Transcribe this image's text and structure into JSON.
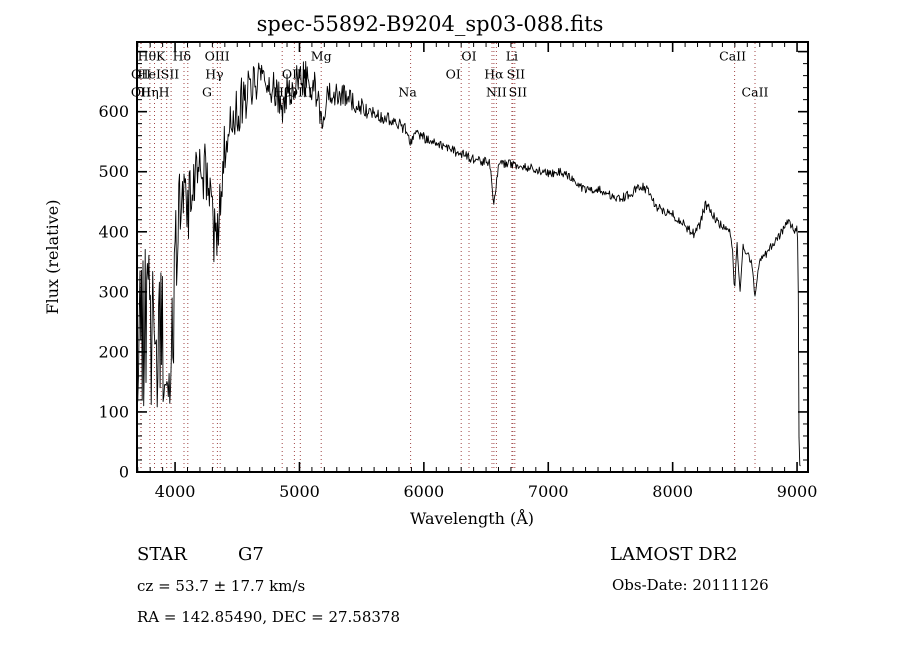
{
  "title": "spec-55892-B9204_sp03-088.fits",
  "axes": {
    "x_label": "Wavelength (Å)",
    "y_label": "Flux (relative)",
    "x_major_ticks": [
      4000,
      5000,
      6000,
      7000,
      8000,
      9000
    ],
    "y_major_ticks": [
      0,
      100,
      200,
      300,
      400,
      500,
      600,
      700
    ],
    "y_labeled_ticks": [
      0,
      100,
      200,
      300,
      400,
      500,
      600
    ],
    "x_minor_step": 100,
    "y_minor_step": 20,
    "x_range": [
      3694,
      9088
    ],
    "y_range": [
      0,
      716
    ]
  },
  "annotations": {
    "object_class": "STAR",
    "subclass": "G7",
    "cz": "cz = 53.7 ± 17.7 km/s",
    "radec": "RA = 142.85490, DEC =  27.58378",
    "survey": "LAMOST DR2",
    "obs_date": "Obs-Date: 20111126"
  },
  "colors": {
    "trace": "#000000",
    "marker_line": "#a04545",
    "text": "#000000",
    "background": "#ffffff"
  },
  "spectral_lines": [
    {
      "label": "OII",
      "wavelength": 3727,
      "row": 2,
      "dx": 0
    },
    {
      "label": "OII",
      "wavelength": 3725,
      "row": 3,
      "dx": 0
    },
    {
      "label": "Hθ",
      "wavelength": 3798,
      "row": 1,
      "dx": -3
    },
    {
      "label": "Hη",
      "wavelength": 3835,
      "row": 3,
      "dx": -5
    },
    {
      "label": "HeI",
      "wavelength": 3889,
      "row": 2,
      "dx": -12
    },
    {
      "label": "K",
      "wavelength": 3933,
      "row": 1,
      "dx": -6
    },
    {
      "label": "H",
      "wavelength": 3968,
      "row": 3,
      "dx": -7
    },
    {
      "label": "SII",
      "wavelength": 4072,
      "row": 2,
      "dx": -14
    },
    {
      "label": "Hδ",
      "wavelength": 4102,
      "row": 1,
      "dx": -6
    },
    {
      "label": "G",
      "wavelength": 4305,
      "row": 3,
      "dx": -6
    },
    {
      "label": "Hγ",
      "wavelength": 4340,
      "row": 2,
      "dx": -3
    },
    {
      "label": "OIII",
      "wavelength": 4363,
      "row": 1,
      "dx": -3
    },
    {
      "label": "Hβ",
      "wavelength": 4861,
      "row": 3,
      "dx": 0
    },
    {
      "label": "OIII",
      "wavelength": 4959,
      "row": 2,
      "dx": 0
    },
    {
      "label": "OIII",
      "wavelength": 5007,
      "row": 3,
      "dx": 0
    },
    {
      "label": "Mg",
      "wavelength": 5175,
      "row": 1,
      "dx": 0
    },
    {
      "label": "Na",
      "wavelength": 5893,
      "row": 3,
      "dx": -3
    },
    {
      "label": "OI",
      "wavelength": 6300,
      "row": 2,
      "dx": -8
    },
    {
      "label": "OI",
      "wavelength": 6363,
      "row": 1,
      "dx": 0
    },
    {
      "label": "",
      "wavelength": 6548,
      "row": 0,
      "dx": 0
    },
    {
      "label": "Hα",
      "wavelength": 6563,
      "row": 2,
      "dx": 0
    },
    {
      "label": "NII",
      "wavelength": 6583,
      "row": 3,
      "dx": 0
    },
    {
      "label": "Li",
      "wavelength": 6708,
      "row": 1,
      "dx": 0
    },
    {
      "label": "SII",
      "wavelength": 6716,
      "row": 2,
      "dx": 3
    },
    {
      "label": "SII",
      "wavelength": 6731,
      "row": 3,
      "dx": 3
    },
    {
      "label": "CaII",
      "wavelength": 8498,
      "row": 1,
      "dx": -2
    },
    {
      "label": "CaII",
      "wavelength": 8662,
      "row": 3,
      "dx": 0
    }
  ],
  "chart_data": {
    "type": "line",
    "title": "spec-55892-B9204_sp03-088.fits",
    "xlabel": "Wavelength (Å)",
    "ylabel": "Flux (relative)",
    "xlim": [
      3694,
      9088
    ],
    "ylim": [
      0,
      716
    ],
    "grid": false,
    "legend": "none",
    "point_format": [
      "wavelength_A",
      "flux_relative",
      "noise_amplitude"
    ],
    "noise_seed": 1987,
    "series": [
      {
        "name": "spectrum",
        "points": [
          [
            3700,
            240,
            130
          ],
          [
            3725,
            255,
            140
          ],
          [
            3750,
            245,
            140
          ],
          [
            3775,
            235,
            135
          ],
          [
            3800,
            225,
            130
          ],
          [
            3830,
            205,
            125
          ],
          [
            3860,
            215,
            120
          ],
          [
            3890,
            230,
            115
          ],
          [
            3915,
            205,
            105
          ],
          [
            3933,
            150,
            70
          ],
          [
            3952,
            210,
            90
          ],
          [
            3968,
            170,
            90
          ],
          [
            3985,
            260,
            110
          ],
          [
            4005,
            340,
            110
          ],
          [
            4030,
            430,
            85
          ],
          [
            4060,
            470,
            65
          ],
          [
            4085,
            465,
            60
          ],
          [
            4102,
            430,
            60
          ],
          [
            4125,
            475,
            55
          ],
          [
            4160,
            500,
            52
          ],
          [
            4200,
            510,
            50
          ],
          [
            4240,
            505,
            55
          ],
          [
            4270,
            480,
            55
          ],
          [
            4305,
            395,
            60
          ],
          [
            4340,
            385,
            60
          ],
          [
            4365,
            470,
            55
          ],
          [
            4400,
            540,
            48
          ],
          [
            4440,
            565,
            45
          ],
          [
            4480,
            590,
            44
          ],
          [
            4520,
            610,
            42
          ],
          [
            4570,
            628,
            40
          ],
          [
            4620,
            640,
            38
          ],
          [
            4670,
            650,
            36
          ],
          [
            4720,
            655,
            34
          ],
          [
            4770,
            650,
            34
          ],
          [
            4820,
            638,
            32
          ],
          [
            4861,
            592,
            30
          ],
          [
            4900,
            632,
            30
          ],
          [
            4950,
            642,
            30
          ],
          [
            5000,
            650,
            32
          ],
          [
            5050,
            655,
            32
          ],
          [
            5100,
            648,
            30
          ],
          [
            5140,
            628,
            28
          ],
          [
            5175,
            572,
            30
          ],
          [
            5210,
            618,
            26
          ],
          [
            5260,
            634,
            24
          ],
          [
            5320,
            630,
            22
          ],
          [
            5380,
            621,
            19
          ],
          [
            5440,
            614,
            17
          ],
          [
            5500,
            609,
            15
          ],
          [
            5560,
            601,
            14
          ],
          [
            5620,
            596,
            13
          ],
          [
            5680,
            590,
            12
          ],
          [
            5740,
            585,
            11
          ],
          [
            5800,
            579,
            10
          ],
          [
            5860,
            570,
            9
          ],
          [
            5893,
            547,
            8
          ],
          [
            5925,
            564,
            9
          ],
          [
            5990,
            558,
            9
          ],
          [
            6060,
            551,
            8
          ],
          [
            6130,
            546,
            8
          ],
          [
            6200,
            540,
            8
          ],
          [
            6270,
            532,
            8
          ],
          [
            6330,
            527,
            8
          ],
          [
            6400,
            522,
            8
          ],
          [
            6470,
            518,
            8
          ],
          [
            6530,
            514,
            7
          ],
          [
            6563,
            446,
            6
          ],
          [
            6600,
            512,
            7
          ],
          [
            6660,
            514,
            7
          ],
          [
            6730,
            511,
            7
          ],
          [
            6800,
            509,
            7
          ],
          [
            6880,
            505,
            7
          ],
          [
            6960,
            500,
            7
          ],
          [
            7030,
            497,
            7
          ],
          [
            7100,
            500,
            7
          ],
          [
            7160,
            494,
            7
          ],
          [
            7220,
            482,
            7
          ],
          [
            7280,
            471,
            7
          ],
          [
            7340,
            468,
            7
          ],
          [
            7400,
            471,
            7
          ],
          [
            7460,
            464,
            7
          ],
          [
            7520,
            459,
            7
          ],
          [
            7580,
            455,
            7
          ],
          [
            7640,
            460,
            8
          ],
          [
            7700,
            470,
            8
          ],
          [
            7750,
            477,
            8
          ],
          [
            7790,
            471,
            8
          ],
          [
            7830,
            456,
            8
          ],
          [
            7880,
            441,
            8
          ],
          [
            7940,
            432,
            8
          ],
          [
            8000,
            428,
            8
          ],
          [
            8060,
            419,
            8
          ],
          [
            8120,
            406,
            8
          ],
          [
            8170,
            397,
            8
          ],
          [
            8220,
            412,
            9
          ],
          [
            8265,
            447,
            9
          ],
          [
            8310,
            431,
            8
          ],
          [
            8360,
            416,
            8
          ],
          [
            8410,
            408,
            7
          ],
          [
            8455,
            401,
            7
          ],
          [
            8480,
            378,
            6
          ],
          [
            8498,
            299,
            5
          ],
          [
            8517,
            384,
            6
          ],
          [
            8542,
            296,
            5
          ],
          [
            8565,
            374,
            6
          ],
          [
            8600,
            361,
            7
          ],
          [
            8635,
            350,
            6
          ],
          [
            8662,
            291,
            5
          ],
          [
            8695,
            349,
            7
          ],
          [
            8740,
            361,
            7
          ],
          [
            8790,
            374,
            7
          ],
          [
            8840,
            389,
            7
          ],
          [
            8890,
            403,
            7
          ],
          [
            8925,
            417,
            7
          ],
          [
            8955,
            409,
            6
          ],
          [
            8985,
            401,
            6
          ],
          [
            9002,
            413,
            5
          ],
          [
            9010,
            300,
            4
          ],
          [
            9016,
            60,
            3
          ],
          [
            9022,
            12,
            3
          ],
          [
            9030,
            10,
            2
          ]
        ]
      }
    ]
  }
}
